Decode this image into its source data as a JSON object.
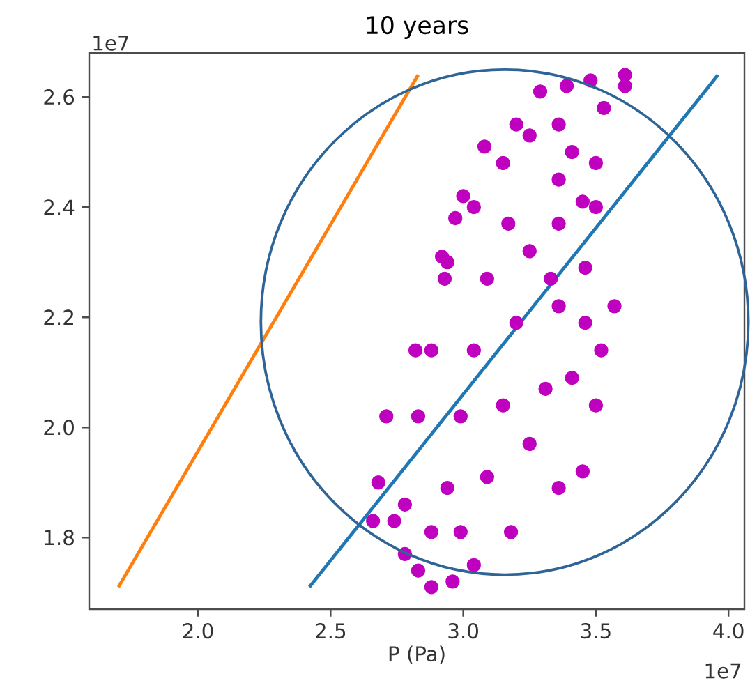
{
  "chart_data": {
    "type": "scatter",
    "title": "10 years",
    "xlabel": "P (Pa)",
    "annotations": [
      "1e7",
      "1e7"
    ],
    "xlim": [
      1.59,
      4.06
    ],
    "ylim": [
      1.67,
      2.68
    ],
    "xticks": [
      {
        "value": 2,
        "label": "2.0"
      },
      2.5,
      {
        "value": 3,
        "label": "3.0"
      },
      3.5,
      {
        "value": 4,
        "label": "4.0"
      }
    ],
    "yticks": [
      1.8,
      {
        "value": 2,
        "label": "2.0"
      },
      2.2,
      2.4,
      2.6
    ],
    "grid": false,
    "series": [
      {
        "marker": "circle",
        "color": "#bf00bf",
        "x": [
          2.88,
          2.96,
          3.04,
          2.83,
          2.78,
          2.74,
          2.66,
          2.68,
          2.71,
          2.82,
          2.83,
          2.88,
          2.93,
          2.94,
          2.92,
          2.97,
          3.0,
          3.08,
          3.2,
          3.29,
          3.39,
          3.48,
          3.61,
          3.61,
          3.53,
          3.5,
          3.45,
          3.5,
          3.46,
          3.57,
          3.52,
          3.5,
          3.45,
          3.36,
          3.18,
          2.78,
          3.04,
          3.15,
          3.25,
          3.36,
          3.41,
          3.09,
          3.25,
          3.36,
          3.04,
          3.2,
          3.36,
          3.46,
          2.99,
          3.15,
          3.31,
          3.41,
          2.94,
          3.09,
          3.25,
          2.99,
          2.88,
          3.33,
          3.17,
          3.36
        ],
        "values": [
          1.71,
          1.72,
          1.75,
          1.74,
          1.77,
          1.83,
          1.83,
          1.9,
          2.02,
          2.14,
          2.02,
          2.14,
          2.27,
          2.3,
          2.31,
          2.38,
          2.42,
          2.51,
          2.55,
          2.61,
          2.62,
          2.63,
          2.64,
          2.62,
          2.58,
          2.48,
          2.41,
          2.4,
          2.29,
          2.22,
          2.14,
          2.04,
          1.92,
          1.89,
          1.81,
          1.86,
          2.4,
          2.48,
          2.53,
          2.55,
          2.5,
          2.27,
          2.32,
          2.37,
          2.14,
          2.19,
          2.22,
          2.19,
          2.02,
          2.04,
          2.07,
          2.09,
          1.89,
          1.91,
          1.97,
          1.81,
          1.81,
          2.27,
          2.37,
          2.45
        ]
      },
      {
        "type": "line",
        "marker": "none",
        "color": "#ff7f0e",
        "x": [
          1.7,
          2.83
        ],
        "values": [
          1.71,
          2.64
        ]
      },
      {
        "type": "line",
        "marker": "none",
        "color": "#1f77b4",
        "x": [
          2.42,
          3.96
        ],
        "values": [
          1.71,
          2.64
        ]
      }
    ]
  }
}
